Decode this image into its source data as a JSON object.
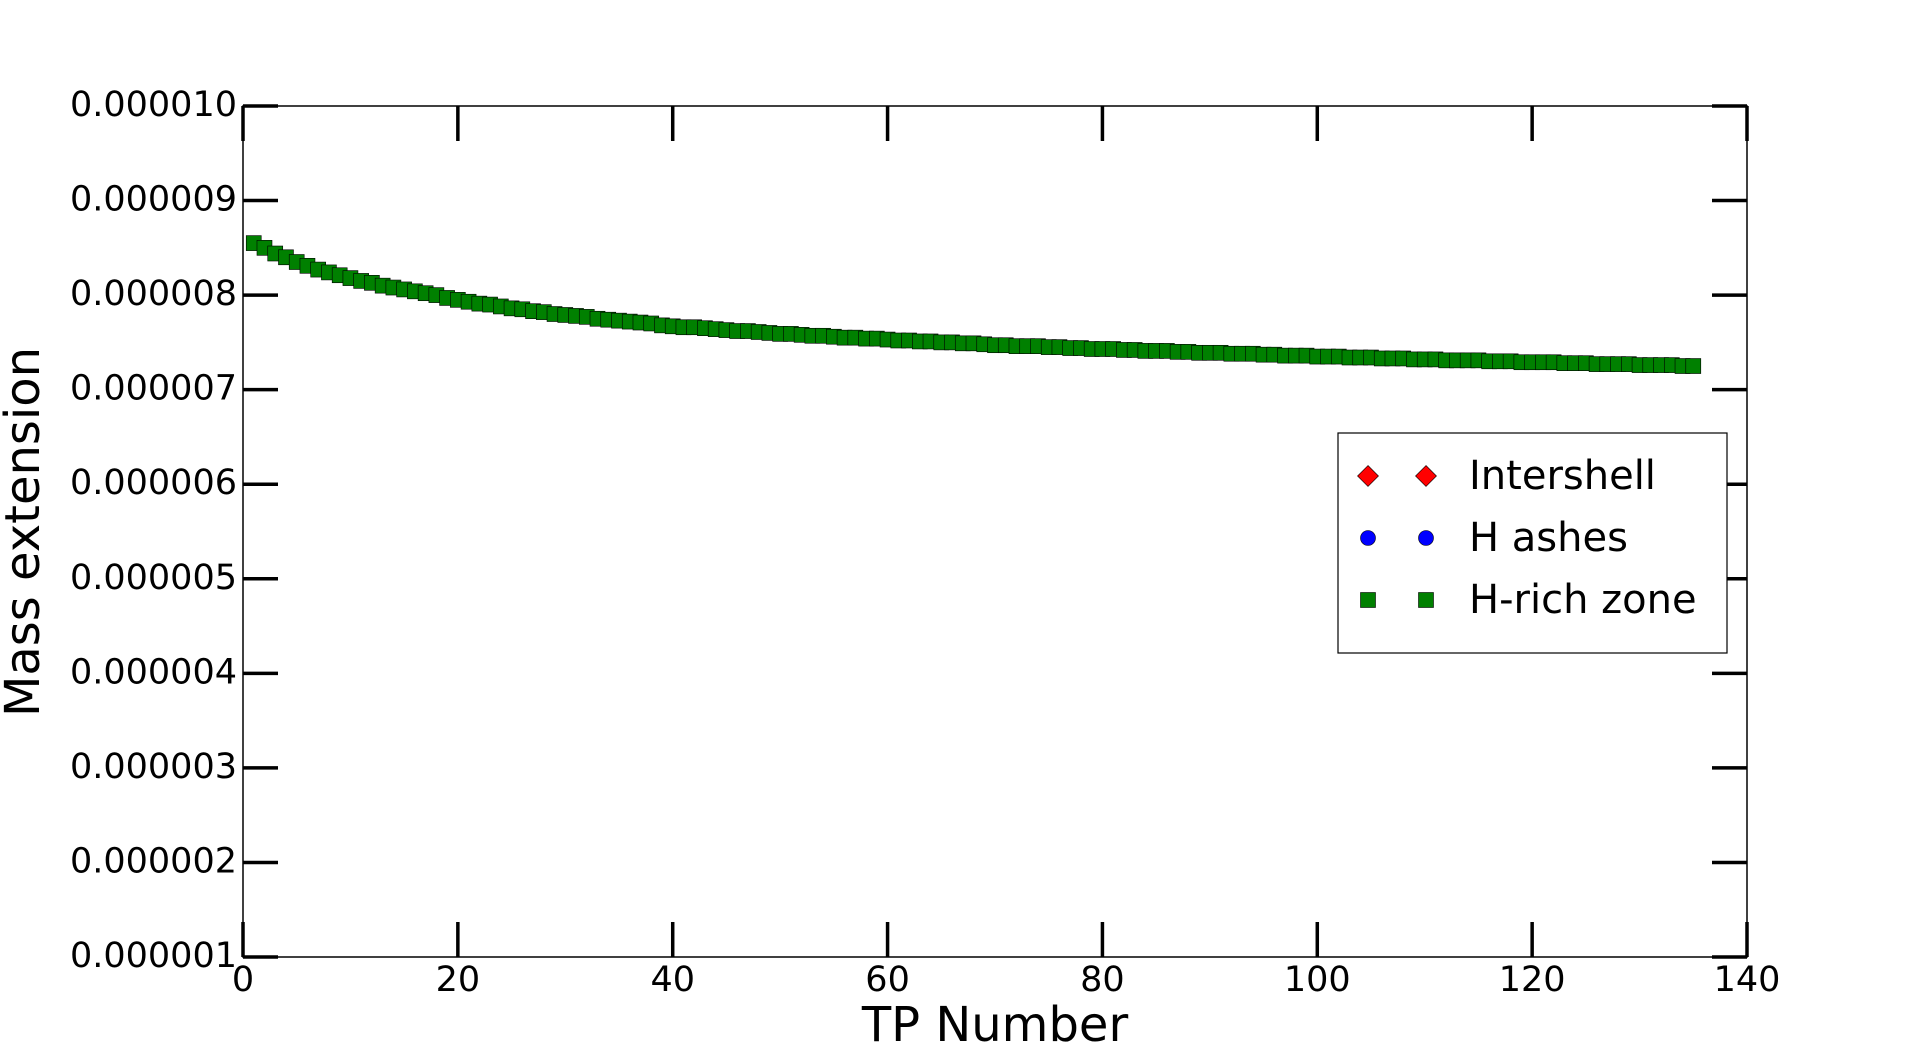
{
  "chart_data": {
    "type": "scatter",
    "xlabel": "TP Number",
    "ylabel": "Mass extension",
    "xlim": [
      0,
      140
    ],
    "xticks": [
      0,
      20,
      40,
      60,
      80,
      100,
      120,
      140
    ],
    "ylim": [
      1e-06,
      1e-05
    ],
    "yticks": [
      {
        "value": 1e-06,
        "label": "0.000001"
      },
      {
        "value": 2e-06,
        "label": "0.000002"
      },
      {
        "value": 3e-06,
        "label": "0.000003"
      },
      {
        "value": 4e-06,
        "label": "0.000004"
      },
      {
        "value": 5e-06,
        "label": "0.000005"
      },
      {
        "value": 6e-06,
        "label": "0.000006"
      },
      {
        "value": 7e-06,
        "label": "0.000007"
      },
      {
        "value": 8e-06,
        "label": "0.000008"
      },
      {
        "value": 9e-06,
        "label": "0.000009"
      },
      {
        "value": 1e-05,
        "label": "0.000010"
      }
    ],
    "legend": "center right",
    "series": [
      {
        "name": "Intershell",
        "color": "#ff0000",
        "marker": "diamond",
        "x": [],
        "values": []
      },
      {
        "name": "H ashes",
        "color": "#0000ff",
        "marker": "circle",
        "x": [],
        "values": []
      },
      {
        "name": "H-rich zone",
        "color": "#008000",
        "marker": "square",
        "x": [
          1,
          2,
          3,
          4,
          5,
          6,
          7,
          8,
          9,
          10,
          11,
          12,
          13,
          14,
          15,
          16,
          17,
          18,
          19,
          20,
          21,
          22,
          23,
          24,
          25,
          26,
          27,
          28,
          29,
          30,
          31,
          32,
          33,
          34,
          35,
          36,
          37,
          38,
          39,
          40,
          41,
          42,
          43,
          44,
          45,
          46,
          47,
          48,
          49,
          50,
          51,
          52,
          53,
          54,
          55,
          56,
          57,
          58,
          59,
          60,
          61,
          62,
          63,
          64,
          65,
          66,
          67,
          68,
          69,
          70,
          71,
          72,
          73,
          74,
          75,
          76,
          77,
          78,
          79,
          80,
          81,
          82,
          83,
          84,
          85,
          86,
          87,
          88,
          89,
          90,
          91,
          92,
          93,
          94,
          95,
          96,
          97,
          98,
          99,
          100,
          101,
          102,
          103,
          104,
          105,
          106,
          107,
          108,
          109,
          110,
          111,
          112,
          113,
          114,
          115,
          116,
          117,
          118,
          119,
          120,
          121,
          122,
          123,
          124,
          125,
          126,
          127,
          128,
          129,
          130,
          131,
          132,
          133,
          134,
          135
        ],
        "values": [
          8.55e-06,
          8.5e-06,
          8.44e-06,
          8.4e-06,
          8.35e-06,
          8.31e-06,
          8.27e-06,
          8.24e-06,
          8.21e-06,
          8.18e-06,
          8.15e-06,
          8.13e-06,
          8.1e-06,
          8.08e-06,
          8.06e-06,
          8.04e-06,
          8.02e-06,
          8e-06,
          7.97e-06,
          7.95e-06,
          7.93e-06,
          7.91e-06,
          7.9e-06,
          7.88e-06,
          7.86e-06,
          7.85e-06,
          7.83e-06,
          7.82e-06,
          7.8e-06,
          7.79e-06,
          7.78e-06,
          7.77e-06,
          7.75e-06,
          7.74e-06,
          7.73e-06,
          7.72e-06,
          7.71e-06,
          7.7e-06,
          7.68e-06,
          7.67e-06,
          7.66e-06,
          7.66e-06,
          7.65e-06,
          7.64e-06,
          7.63e-06,
          7.62e-06,
          7.62e-06,
          7.61e-06,
          7.6e-06,
          7.59e-06,
          7.59e-06,
          7.58e-06,
          7.57e-06,
          7.57e-06,
          7.56e-06,
          7.55e-06,
          7.55e-06,
          7.54e-06,
          7.54e-06,
          7.53e-06,
          7.52e-06,
          7.52e-06,
          7.51e-06,
          7.51e-06,
          7.5e-06,
          7.5e-06,
          7.49e-06,
          7.49e-06,
          7.48e-06,
          7.47e-06,
          7.47e-06,
          7.46e-06,
          7.46e-06,
          7.46e-06,
          7.45e-06,
          7.45e-06,
          7.44e-06,
          7.44e-06,
          7.43e-06,
          7.43e-06,
          7.43e-06,
          7.42e-06,
          7.42e-06,
          7.41e-06,
          7.41e-06,
          7.41e-06,
          7.4e-06,
          7.4e-06,
          7.39e-06,
          7.39e-06,
          7.39e-06,
          7.38e-06,
          7.38e-06,
          7.38e-06,
          7.37e-06,
          7.37e-06,
          7.36e-06,
          7.36e-06,
          7.36e-06,
          7.35e-06,
          7.35e-06,
          7.35e-06,
          7.34e-06,
          7.34e-06,
          7.34e-06,
          7.33e-06,
          7.33e-06,
          7.33e-06,
          7.32e-06,
          7.32e-06,
          7.32e-06,
          7.31e-06,
          7.31e-06,
          7.31e-06,
          7.31e-06,
          7.3e-06,
          7.3e-06,
          7.3e-06,
          7.29e-06,
          7.29e-06,
          7.29e-06,
          7.29e-06,
          7.28e-06,
          7.28e-06,
          7.28e-06,
          7.27e-06,
          7.27e-06,
          7.27e-06,
          7.27e-06,
          7.26e-06,
          7.26e-06,
          7.26e-06,
          7.26e-06,
          7.25e-06,
          7.25e-06
        ]
      }
    ]
  }
}
